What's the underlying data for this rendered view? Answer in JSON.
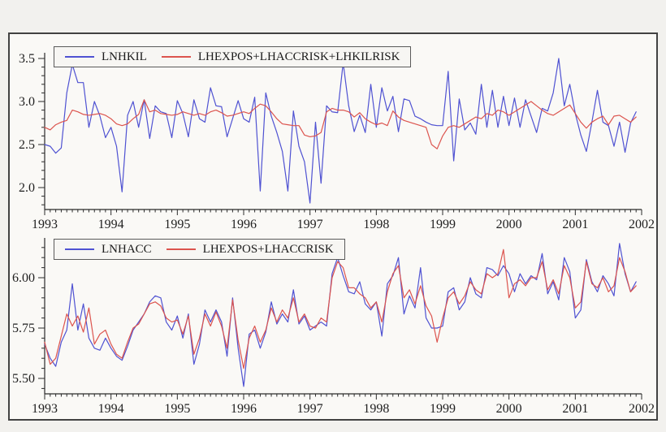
{
  "figure": {
    "background": "#f2f1ee",
    "panel_background": "#faf9f6",
    "border_color": "#424242",
    "axis_color": "#2b2b2b",
    "text_color": "#1f1f1f",
    "blue": "#4f52d2",
    "red": "#dc544e"
  },
  "chart_data": [
    {
      "type": "line",
      "title": "",
      "x_description": "monthly observations 1993M1 - 2001M12",
      "x_tick_labels": [
        "1993",
        "1994",
        "1995",
        "1996",
        "1997",
        "1998",
        "1999",
        "2000",
        "2001",
        "2002"
      ],
      "y_tick_labels": [
        "3.5",
        "3.0",
        "2.5",
        "2.0"
      ],
      "y_ticks": [
        3.5,
        3.0,
        2.5,
        2.0
      ],
      "y_minor_step": 0.1,
      "y_minor_range": [
        1.8,
        3.5
      ],
      "ylim": [
        1.75,
        3.57
      ],
      "grid": false,
      "legend_position": "top-left",
      "series": [
        {
          "name": "LNHKIL",
          "color": "#4f52d2",
          "values": [
            2.5,
            2.48,
            2.4,
            2.46,
            3.1,
            3.43,
            3.22,
            3.22,
            2.7,
            3.0,
            2.83,
            2.58,
            2.7,
            2.48,
            1.95,
            2.84,
            3.0,
            2.7,
            3.02,
            2.57,
            2.95,
            2.88,
            2.86,
            2.58,
            3.01,
            2.86,
            2.59,
            3.02,
            2.8,
            2.76,
            3.16,
            2.95,
            2.94,
            2.59,
            2.8,
            3.01,
            2.8,
            2.76,
            3.05,
            1.96,
            3.1,
            2.83,
            2.64,
            2.42,
            1.96,
            2.89,
            2.48,
            2.3,
            1.82,
            2.76,
            2.05,
            2.95,
            2.88,
            2.87,
            3.45,
            2.95,
            2.65,
            2.84,
            2.64,
            3.2,
            2.7,
            3.16,
            2.89,
            3.06,
            2.65,
            3.03,
            3.01,
            2.83,
            2.8,
            2.76,
            2.73,
            2.72,
            2.72,
            3.35,
            2.31,
            3.03,
            2.67,
            2.75,
            2.62,
            3.2,
            2.7,
            3.13,
            2.7,
            3.06,
            2.72,
            3.04,
            2.7,
            3.02,
            2.83,
            2.64,
            2.92,
            2.89,
            3.1,
            3.5,
            2.95,
            3.2,
            2.86,
            2.61,
            2.42,
            2.76,
            3.13,
            2.76,
            2.72,
            2.48,
            2.76,
            2.41,
            2.75,
            2.88
          ]
        },
        {
          "name": "LHEXPOS+LHACCRISK+LHKILRISK",
          "color": "#dc544e",
          "values": [
            2.7,
            2.67,
            2.73,
            2.76,
            2.78,
            2.9,
            2.88,
            2.85,
            2.84,
            2.85,
            2.86,
            2.84,
            2.8,
            2.74,
            2.72,
            2.74,
            2.8,
            2.85,
            3.02,
            2.88,
            2.9,
            2.86,
            2.85,
            2.84,
            2.85,
            2.88,
            2.86,
            2.84,
            2.86,
            2.84,
            2.88,
            2.9,
            2.87,
            2.83,
            2.84,
            2.86,
            2.88,
            2.86,
            2.92,
            2.97,
            2.95,
            2.88,
            2.8,
            2.74,
            2.73,
            2.72,
            2.72,
            2.61,
            2.59,
            2.6,
            2.64,
            2.88,
            2.92,
            2.9,
            2.9,
            2.88,
            2.82,
            2.87,
            2.8,
            2.76,
            2.73,
            2.75,
            2.72,
            2.89,
            2.82,
            2.78,
            2.76,
            2.74,
            2.72,
            2.7,
            2.5,
            2.45,
            2.6,
            2.7,
            2.72,
            2.7,
            2.74,
            2.78,
            2.82,
            2.8,
            2.86,
            2.84,
            2.9,
            2.88,
            2.84,
            2.88,
            2.92,
            2.96,
            3.0,
            2.95,
            2.9,
            2.86,
            2.84,
            2.88,
            2.92,
            2.96,
            2.86,
            2.76,
            2.69,
            2.76,
            2.8,
            2.83,
            2.73,
            2.83,
            2.84,
            2.8,
            2.76,
            2.82
          ]
        }
      ]
    },
    {
      "type": "line",
      "title": "",
      "x_description": "monthly observations 1993M1 - 2001M12",
      "x_tick_labels": [
        "1993",
        "1994",
        "1995",
        "1996",
        "1997",
        "1998",
        "1999",
        "2000",
        "2001",
        "2002"
      ],
      "y_tick_labels": [
        "6.00",
        "5.75",
        "5.50"
      ],
      "y_ticks": [
        6.0,
        5.75,
        5.5
      ],
      "y_minor_step": 0.05,
      "y_minor_range": [
        5.45,
        6.15
      ],
      "ylim": [
        5.42,
        6.2
      ],
      "grid": false,
      "legend_position": "top-left",
      "series": [
        {
          "name": "LNHACC",
          "color": "#4f52d2",
          "values": [
            5.67,
            5.6,
            5.56,
            5.68,
            5.74,
            5.97,
            5.74,
            5.87,
            5.7,
            5.65,
            5.64,
            5.7,
            5.65,
            5.61,
            5.59,
            5.66,
            5.74,
            5.78,
            5.82,
            5.88,
            5.91,
            5.9,
            5.78,
            5.74,
            5.81,
            5.7,
            5.82,
            5.57,
            5.67,
            5.84,
            5.78,
            5.84,
            5.78,
            5.61,
            5.9,
            5.65,
            5.46,
            5.72,
            5.74,
            5.65,
            5.73,
            5.88,
            5.77,
            5.82,
            5.78,
            5.94,
            5.77,
            5.81,
            5.74,
            5.76,
            5.78,
            5.76,
            6.02,
            6.1,
            6.01,
            5.93,
            5.92,
            5.98,
            5.87,
            5.84,
            5.88,
            5.71,
            5.97,
            6.01,
            6.1,
            5.82,
            5.91,
            5.85,
            6.05,
            5.8,
            5.75,
            5.75,
            5.76,
            5.93,
            5.95,
            5.84,
            5.88,
            6.0,
            5.92,
            5.9,
            6.05,
            6.04,
            6.01,
            6.06,
            6.02,
            5.93,
            6.02,
            5.97,
            6.01,
            5.99,
            6.12,
            5.92,
            5.98,
            5.89,
            6.1,
            6.03,
            5.8,
            5.84,
            6.09,
            5.98,
            5.93,
            6.01,
            5.97,
            5.91,
            6.17,
            6.02,
            5.93,
            5.98
          ]
        },
        {
          "name": "LHEXPOS+LHACCRISK",
          "color": "#dc544e",
          "values": [
            5.68,
            5.57,
            5.6,
            5.71,
            5.82,
            5.76,
            5.81,
            5.73,
            5.85,
            5.67,
            5.72,
            5.74,
            5.67,
            5.62,
            5.6,
            5.68,
            5.75,
            5.77,
            5.82,
            5.87,
            5.88,
            5.86,
            5.8,
            5.78,
            5.79,
            5.72,
            5.81,
            5.62,
            5.7,
            5.82,
            5.76,
            5.83,
            5.76,
            5.65,
            5.89,
            5.69,
            5.55,
            5.7,
            5.76,
            5.68,
            5.74,
            5.85,
            5.78,
            5.84,
            5.8,
            5.9,
            5.78,
            5.82,
            5.76,
            5.75,
            5.8,
            5.78,
            6.0,
            6.08,
            6.05,
            5.95,
            5.95,
            5.92,
            5.9,
            5.85,
            5.88,
            5.78,
            5.93,
            6.02,
            6.06,
            5.9,
            5.94,
            5.87,
            5.96,
            5.86,
            5.81,
            5.68,
            5.8,
            5.9,
            5.93,
            5.87,
            5.91,
            5.98,
            5.94,
            5.92,
            6.02,
            6.0,
            6.02,
            6.14,
            5.9,
            5.97,
            5.99,
            5.96,
            6.0,
            6.0,
            6.08,
            5.94,
            5.99,
            5.92,
            6.06,
            6.0,
            5.85,
            5.88,
            6.08,
            5.97,
            5.95,
            6.0,
            5.93,
            5.96,
            6.1,
            6.03,
            5.93,
            5.96
          ]
        }
      ]
    }
  ]
}
